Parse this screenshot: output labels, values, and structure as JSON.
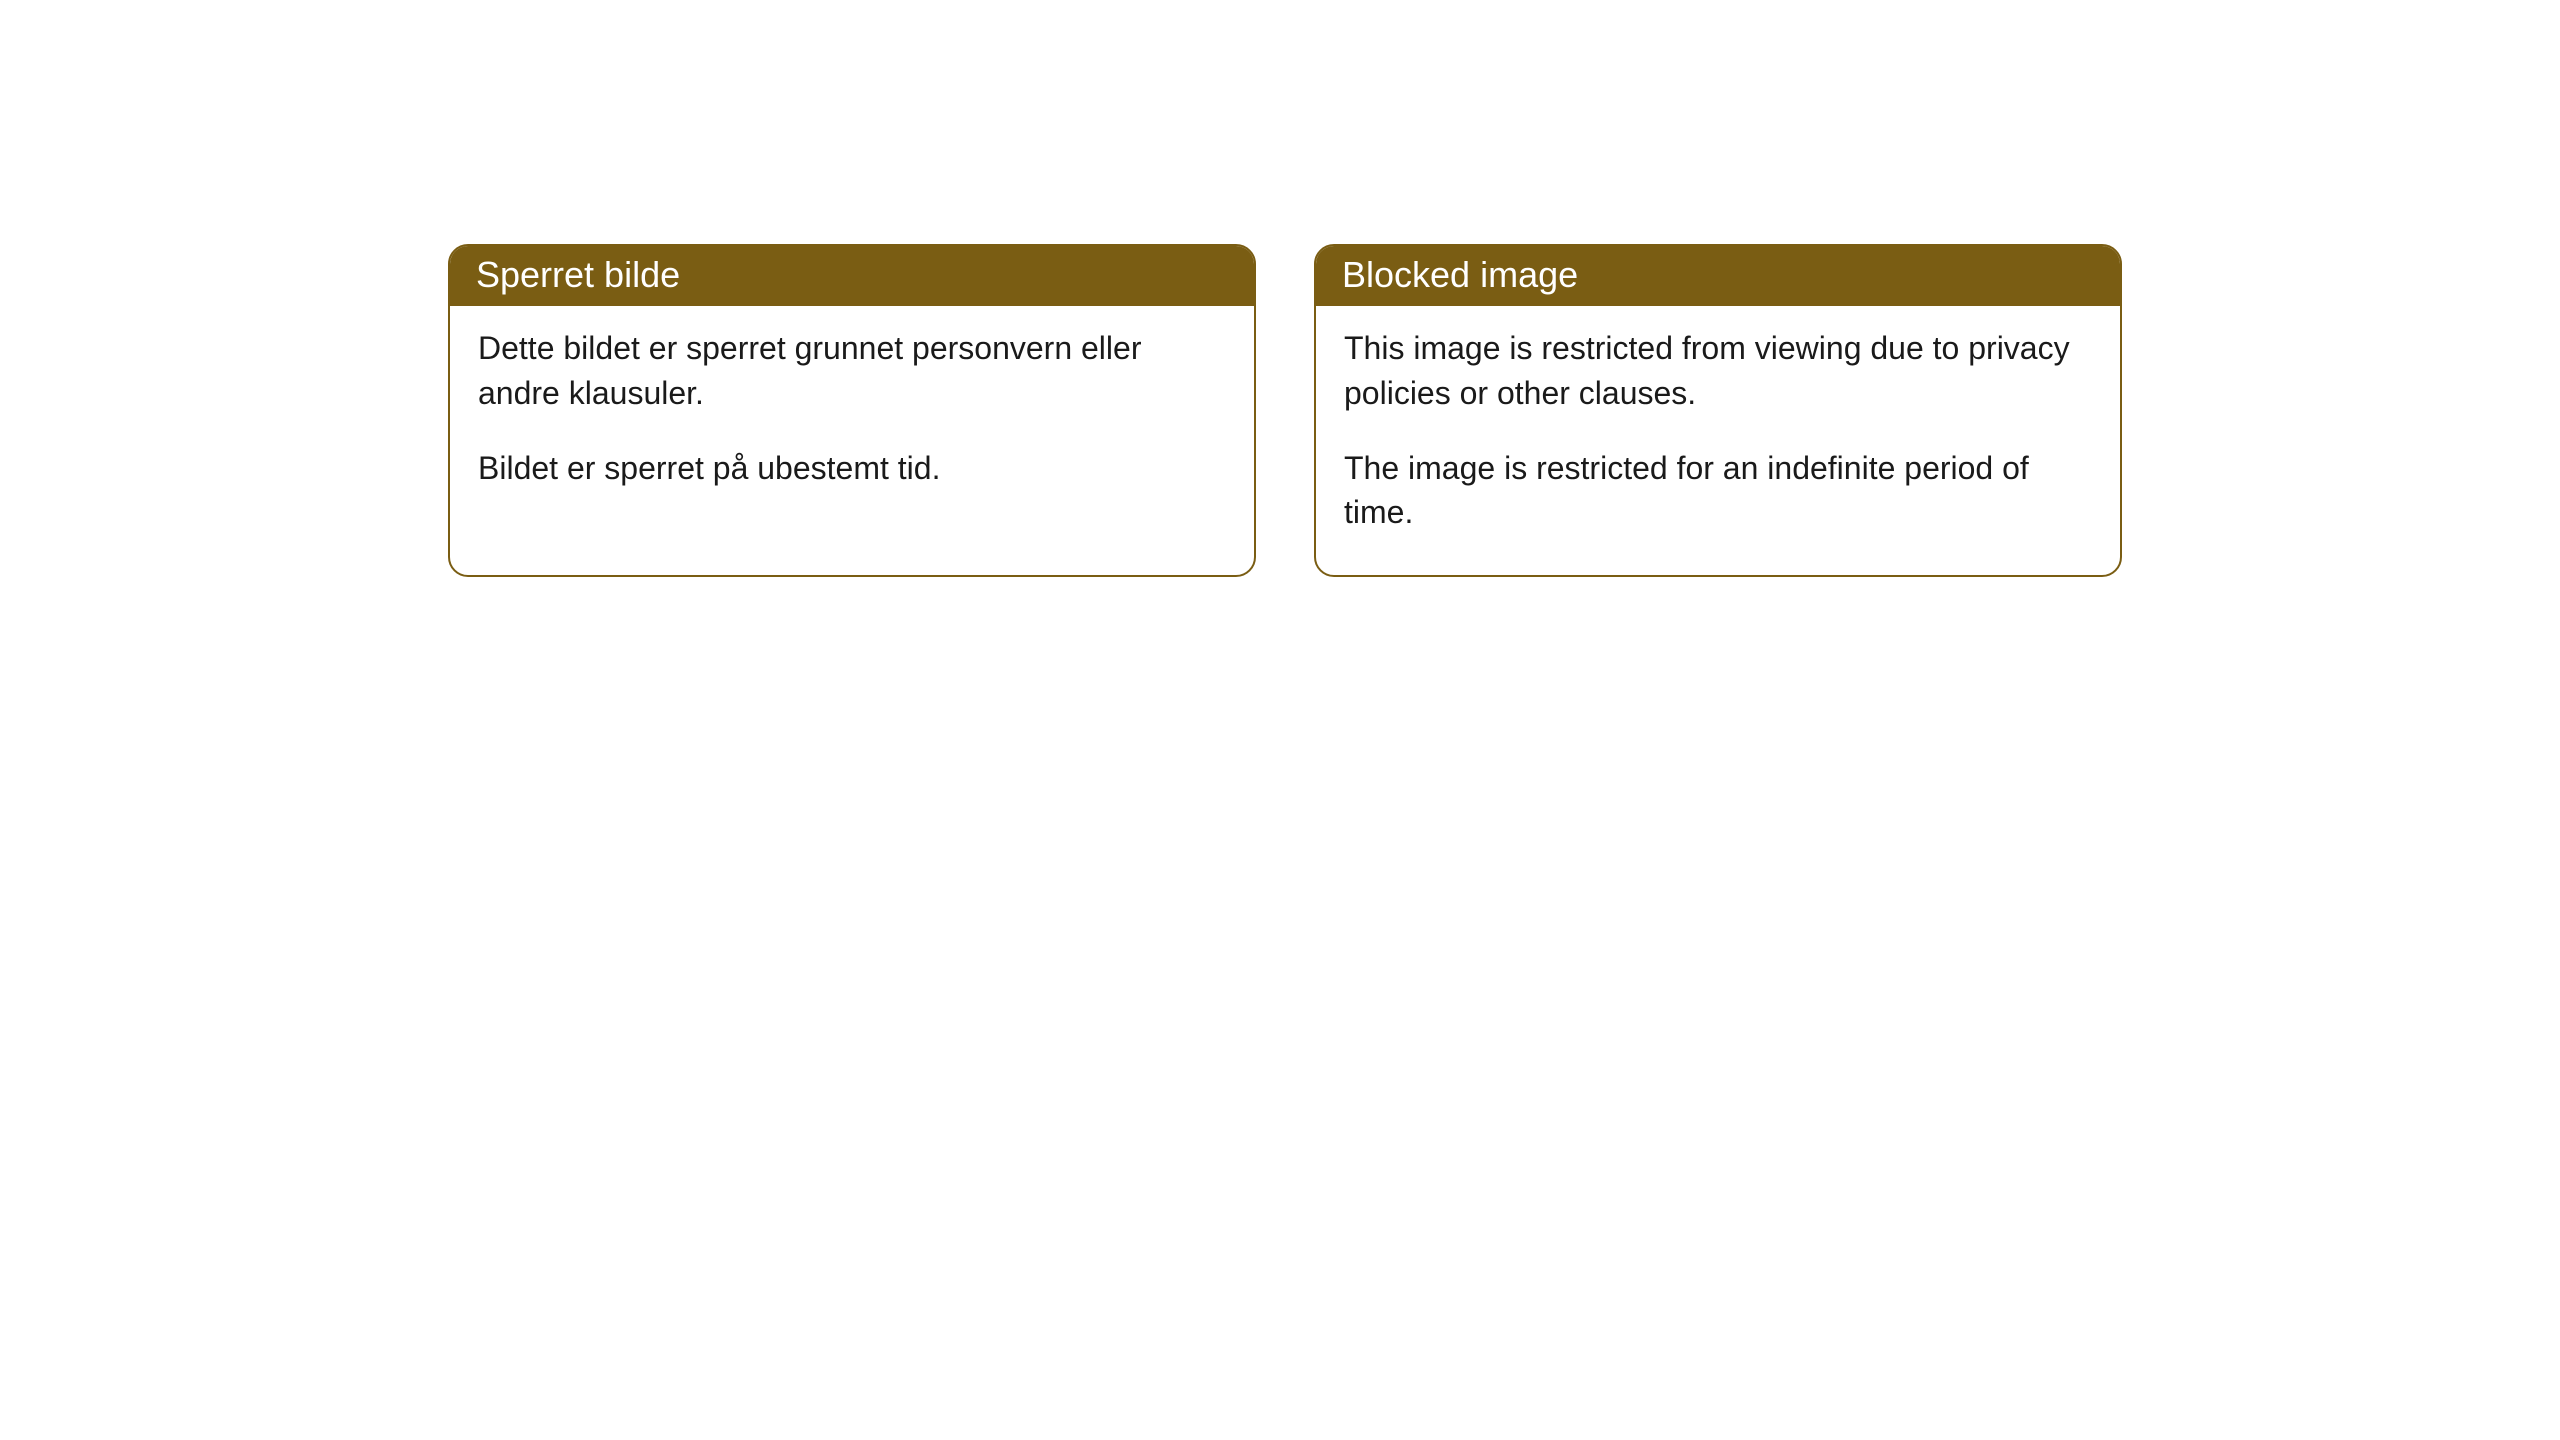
{
  "cards": [
    {
      "title": "Sperret bilde",
      "paragraph1": "Dette bildet er sperret grunnet personvern eller andre klausuler.",
      "paragraph2": "Bildet er sperret på ubestemt tid."
    },
    {
      "title": "Blocked image",
      "paragraph1": "This image is restricted from viewing due to privacy policies or other clauses.",
      "paragraph2": "The image is restricted for an indefinite period of time."
    }
  ],
  "style": {
    "header_bg_color": "#7a5d13",
    "header_text_color": "#ffffff",
    "border_color": "#7a5d13",
    "body_bg_color": "#ffffff",
    "body_text_color": "#1a1a1a",
    "border_radius": 20,
    "header_fontsize": 36,
    "body_fontsize": 32
  }
}
